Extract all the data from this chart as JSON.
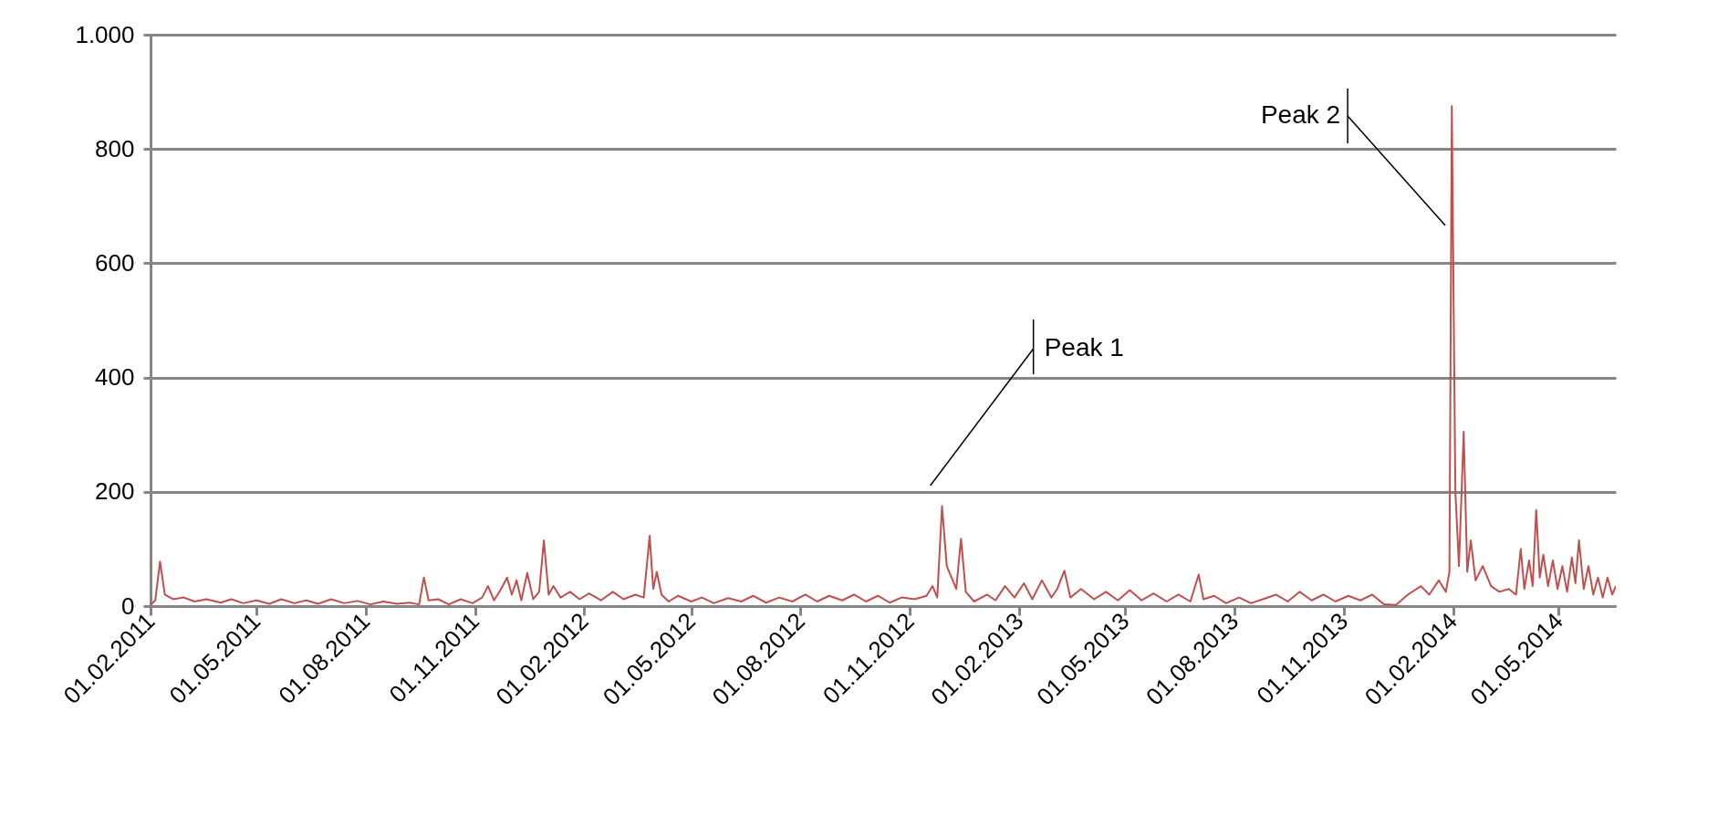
{
  "chart_data": {
    "type": "line",
    "x": [
      "2011-02-01",
      "2011-02-05",
      "2011-02-09",
      "2011-02-13",
      "2011-02-20",
      "2011-03-01",
      "2011-03-10",
      "2011-03-20",
      "2011-04-01",
      "2011-04-10",
      "2011-04-20",
      "2011-05-01",
      "2011-05-12",
      "2011-05-22",
      "2011-06-02",
      "2011-06-12",
      "2011-06-22",
      "2011-07-03",
      "2011-07-14",
      "2011-07-25",
      "2011-08-05",
      "2011-08-16",
      "2011-08-27",
      "2011-09-07",
      "2011-09-15",
      "2011-09-19",
      "2011-09-23",
      "2011-10-01",
      "2011-10-10",
      "2011-10-20",
      "2011-10-30",
      "2011-11-07",
      "2011-11-12",
      "2011-11-17",
      "2011-11-23",
      "2011-11-28",
      "2011-12-02",
      "2011-12-06",
      "2011-12-10",
      "2011-12-15",
      "2011-12-20",
      "2011-12-25",
      "2011-12-29",
      "2012-01-02",
      "2012-01-06",
      "2012-01-12",
      "2012-01-20",
      "2012-01-28",
      "2012-02-05",
      "2012-02-15",
      "2012-02-25",
      "2012-03-05",
      "2012-03-15",
      "2012-03-22",
      "2012-03-27",
      "2012-03-30",
      "2012-04-02",
      "2012-04-06",
      "2012-04-12",
      "2012-04-20",
      "2012-05-01",
      "2012-05-10",
      "2012-05-20",
      "2012-06-01",
      "2012-06-12",
      "2012-06-22",
      "2012-07-03",
      "2012-07-14",
      "2012-07-25",
      "2012-08-05",
      "2012-08-15",
      "2012-08-25",
      "2012-09-05",
      "2012-09-15",
      "2012-09-25",
      "2012-10-05",
      "2012-10-15",
      "2012-10-25",
      "2012-11-05",
      "2012-11-15",
      "2012-11-20",
      "2012-11-24",
      "2012-11-28",
      "2012-12-02",
      "2012-12-06",
      "2012-12-10",
      "2012-12-14",
      "2012-12-18",
      "2012-12-25",
      "2013-01-05",
      "2013-01-12",
      "2013-01-20",
      "2013-01-28",
      "2013-02-05",
      "2013-02-12",
      "2013-02-20",
      "2013-02-28",
      "2013-03-05",
      "2013-03-11",
      "2013-03-16",
      "2013-03-25",
      "2013-04-05",
      "2013-04-15",
      "2013-04-25",
      "2013-05-05",
      "2013-05-15",
      "2013-05-25",
      "2013-06-05",
      "2013-06-15",
      "2013-06-25",
      "2013-07-02",
      "2013-07-06",
      "2013-07-15",
      "2013-07-25",
      "2013-08-05",
      "2013-08-15",
      "2013-08-25",
      "2013-09-05",
      "2013-09-15",
      "2013-09-25",
      "2013-10-05",
      "2013-10-15",
      "2013-10-25",
      "2013-11-05",
      "2013-11-15",
      "2013-11-25",
      "2013-12-05",
      "2013-12-15",
      "2013-12-25",
      "2014-01-05",
      "2014-01-12",
      "2014-01-20",
      "2014-01-26",
      "2014-01-29",
      "2014-01-31",
      "2014-02-03",
      "2014-02-06",
      "2014-02-10",
      "2014-02-13",
      "2014-02-16",
      "2014-02-20",
      "2014-02-26",
      "2014-03-05",
      "2014-03-12",
      "2014-03-20",
      "2014-03-26",
      "2014-03-30",
      "2014-04-02",
      "2014-04-06",
      "2014-04-09",
      "2014-04-12",
      "2014-04-15",
      "2014-04-18",
      "2014-04-22",
      "2014-04-26",
      "2014-04-30",
      "2014-05-04",
      "2014-05-08",
      "2014-05-12",
      "2014-05-15",
      "2014-05-18",
      "2014-05-22",
      "2014-05-26",
      "2014-05-30",
      "2014-06-03",
      "2014-06-07",
      "2014-06-11",
      "2014-06-15",
      "2014-06-18"
    ],
    "series": [
      {
        "color": "#c0504d",
        "values": [
          2,
          10,
          78,
          20,
          12,
          15,
          8,
          12,
          6,
          12,
          5,
          10,
          4,
          12,
          5,
          10,
          4,
          12,
          5,
          9,
          3,
          8,
          4,
          6,
          3,
          50,
          10,
          12,
          3,
          12,
          5,
          15,
          35,
          10,
          30,
          50,
          20,
          45,
          10,
          58,
          12,
          25,
          115,
          20,
          35,
          15,
          25,
          12,
          22,
          10,
          25,
          12,
          20,
          15,
          123,
          30,
          60,
          20,
          8,
          18,
          8,
          15,
          5,
          14,
          8,
          18,
          6,
          15,
          8,
          20,
          8,
          18,
          10,
          20,
          8,
          18,
          6,
          15,
          12,
          18,
          35,
          15,
          175,
          70,
          50,
          30,
          118,
          25,
          8,
          20,
          10,
          35,
          15,
          40,
          12,
          45,
          15,
          30,
          62,
          15,
          30,
          12,
          25,
          10,
          28,
          10,
          22,
          8,
          20,
          8,
          55,
          12,
          18,
          5,
          15,
          5,
          12,
          20,
          8,
          25,
          10,
          20,
          8,
          18,
          10,
          20,
          3,
          2,
          20,
          35,
          20,
          45,
          25,
          60,
          875,
          200,
          70,
          305,
          60,
          115,
          45,
          70,
          35,
          25,
          30,
          20,
          100,
          30,
          80,
          35,
          168,
          50,
          90,
          35,
          80,
          30,
          70,
          25,
          85,
          40,
          115,
          30,
          70,
          20,
          50,
          15,
          50,
          20,
          35
        ]
      }
    ],
    "xlim": [
      "2011-02-01",
      "2014-06-18"
    ],
    "xticks": [
      {
        "value": "2011-02-01",
        "label": "01.02.2011"
      },
      {
        "value": "2011-05-01",
        "label": "01.05.2011"
      },
      {
        "value": "2011-08-01",
        "label": "01.08.2011"
      },
      {
        "value": "2011-11-01",
        "label": "01.11.2011"
      },
      {
        "value": "2012-02-01",
        "label": "01.02.2012"
      },
      {
        "value": "2012-05-01",
        "label": "01.05.2012"
      },
      {
        "value": "2012-08-01",
        "label": "01.08.2012"
      },
      {
        "value": "2012-11-01",
        "label": "01.11.2012"
      },
      {
        "value": "2013-02-01",
        "label": "01.02.2013"
      },
      {
        "value": "2013-05-01",
        "label": "01.05.2013"
      },
      {
        "value": "2013-08-01",
        "label": "01.08.2013"
      },
      {
        "value": "2013-11-01",
        "label": "01.11.2013"
      },
      {
        "value": "2014-02-01",
        "label": "01.02.2014"
      },
      {
        "value": "2014-05-01",
        "label": "01.05.2014"
      }
    ],
    "ylim": [
      0,
      1000
    ],
    "yticks": [
      0,
      200,
      400,
      600,
      800,
      {
        "value": 1000,
        "label": "1.000"
      }
    ],
    "grid": "y",
    "annotations": [
      "Peak 1",
      "Peak 2"
    ]
  }
}
